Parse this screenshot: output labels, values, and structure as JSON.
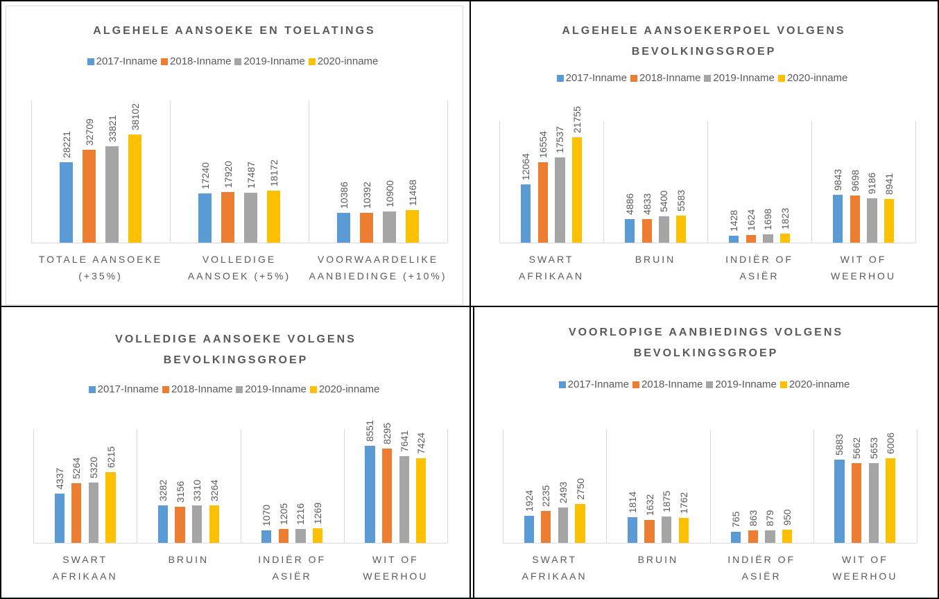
{
  "chart_data": [
    {
      "type": "bar",
      "title": "ALGEHELE AANSOEKE EN TOELATINGS",
      "categories": [
        "TOTALE AANSOEKE (+35%)",
        "VOLLEDIGE AANSOEK (+5%)",
        "VOORWAARDELIKE AANBIEDINGE (+10%)"
      ],
      "series": [
        {
          "name": "2017-Inname",
          "color": "#5b9bd5",
          "values": [
            28221,
            17240,
            10386
          ]
        },
        {
          "name": "2018-Inname",
          "color": "#ed7d31",
          "values": [
            32709,
            17920,
            10392
          ]
        },
        {
          "name": "2019-Inname",
          "color": "#a5a5a5",
          "values": [
            33821,
            17487,
            10900
          ]
        },
        {
          "name": "2020-inname",
          "color": "#ffc000",
          "values": [
            38102,
            18172,
            11468
          ]
        }
      ],
      "ylim": [
        0,
        50000
      ]
    },
    {
      "type": "bar",
      "title": "ALGEHELE AANSOEKERPOEL VOLGENS BEVOLKINGSGROEP",
      "categories": [
        "SWART AFRIKAAN",
        "BRUIN",
        "INDIËR OF ASIËR",
        "WIT OF WEERHOU"
      ],
      "series": [
        {
          "name": "2017-Inname",
          "color": "#5b9bd5",
          "values": [
            12064,
            4886,
            1428,
            9843
          ]
        },
        {
          "name": "2018-Inname",
          "color": "#ed7d31",
          "values": [
            16554,
            4833,
            1624,
            9698
          ]
        },
        {
          "name": "2019-Inname",
          "color": "#a5a5a5",
          "values": [
            17537,
            5400,
            1698,
            9186
          ]
        },
        {
          "name": "2020-inname",
          "color": "#ffc000",
          "values": [
            21755,
            5583,
            1823,
            8941
          ]
        }
      ],
      "ylim": [
        0,
        25000
      ]
    },
    {
      "type": "bar",
      "title": "VOLLEDIGE AANSOEKE VOLGENS BEVOLKINGSGROEP",
      "categories": [
        "SWART AFRIKAAN",
        "BRUIN",
        "INDIËR OF ASIËR",
        "WIT OF WEERHOU"
      ],
      "series": [
        {
          "name": "2017-Inname",
          "color": "#5b9bd5",
          "values": [
            4337,
            3282,
            1070,
            8551
          ]
        },
        {
          "name": "2018-Inname",
          "color": "#ed7d31",
          "values": [
            5264,
            3156,
            1205,
            8295
          ]
        },
        {
          "name": "2019-Inname",
          "color": "#a5a5a5",
          "values": [
            5320,
            3310,
            1216,
            7641
          ]
        },
        {
          "name": "2020-inname",
          "color": "#ffc000",
          "values": [
            6215,
            3264,
            1269,
            7424
          ]
        }
      ],
      "ylim": [
        0,
        10000
      ]
    },
    {
      "type": "bar",
      "title": "VOORLOPIGE AANBIEDINGS VOLGENS BEVOLKINGSGROEP",
      "categories": [
        "SWART AFRIKAAN",
        "BRUIN",
        "INDIËR OF ASIËR",
        "WIT OF WEERHOU"
      ],
      "series": [
        {
          "name": "2017-Inname",
          "color": "#5b9bd5",
          "values": [
            1924,
            1814,
            765,
            5883
          ]
        },
        {
          "name": "2018-Inname",
          "color": "#ed7d31",
          "values": [
            2235,
            1632,
            863,
            5662
          ]
        },
        {
          "name": "2019-Inname",
          "color": "#a5a5a5",
          "values": [
            2493,
            1875,
            879,
            5653
          ]
        },
        {
          "name": "2020-inname",
          "color": "#ffc000",
          "values": [
            2750,
            1762,
            950,
            6006
          ]
        }
      ],
      "ylim": [
        0,
        8000
      ]
    }
  ]
}
